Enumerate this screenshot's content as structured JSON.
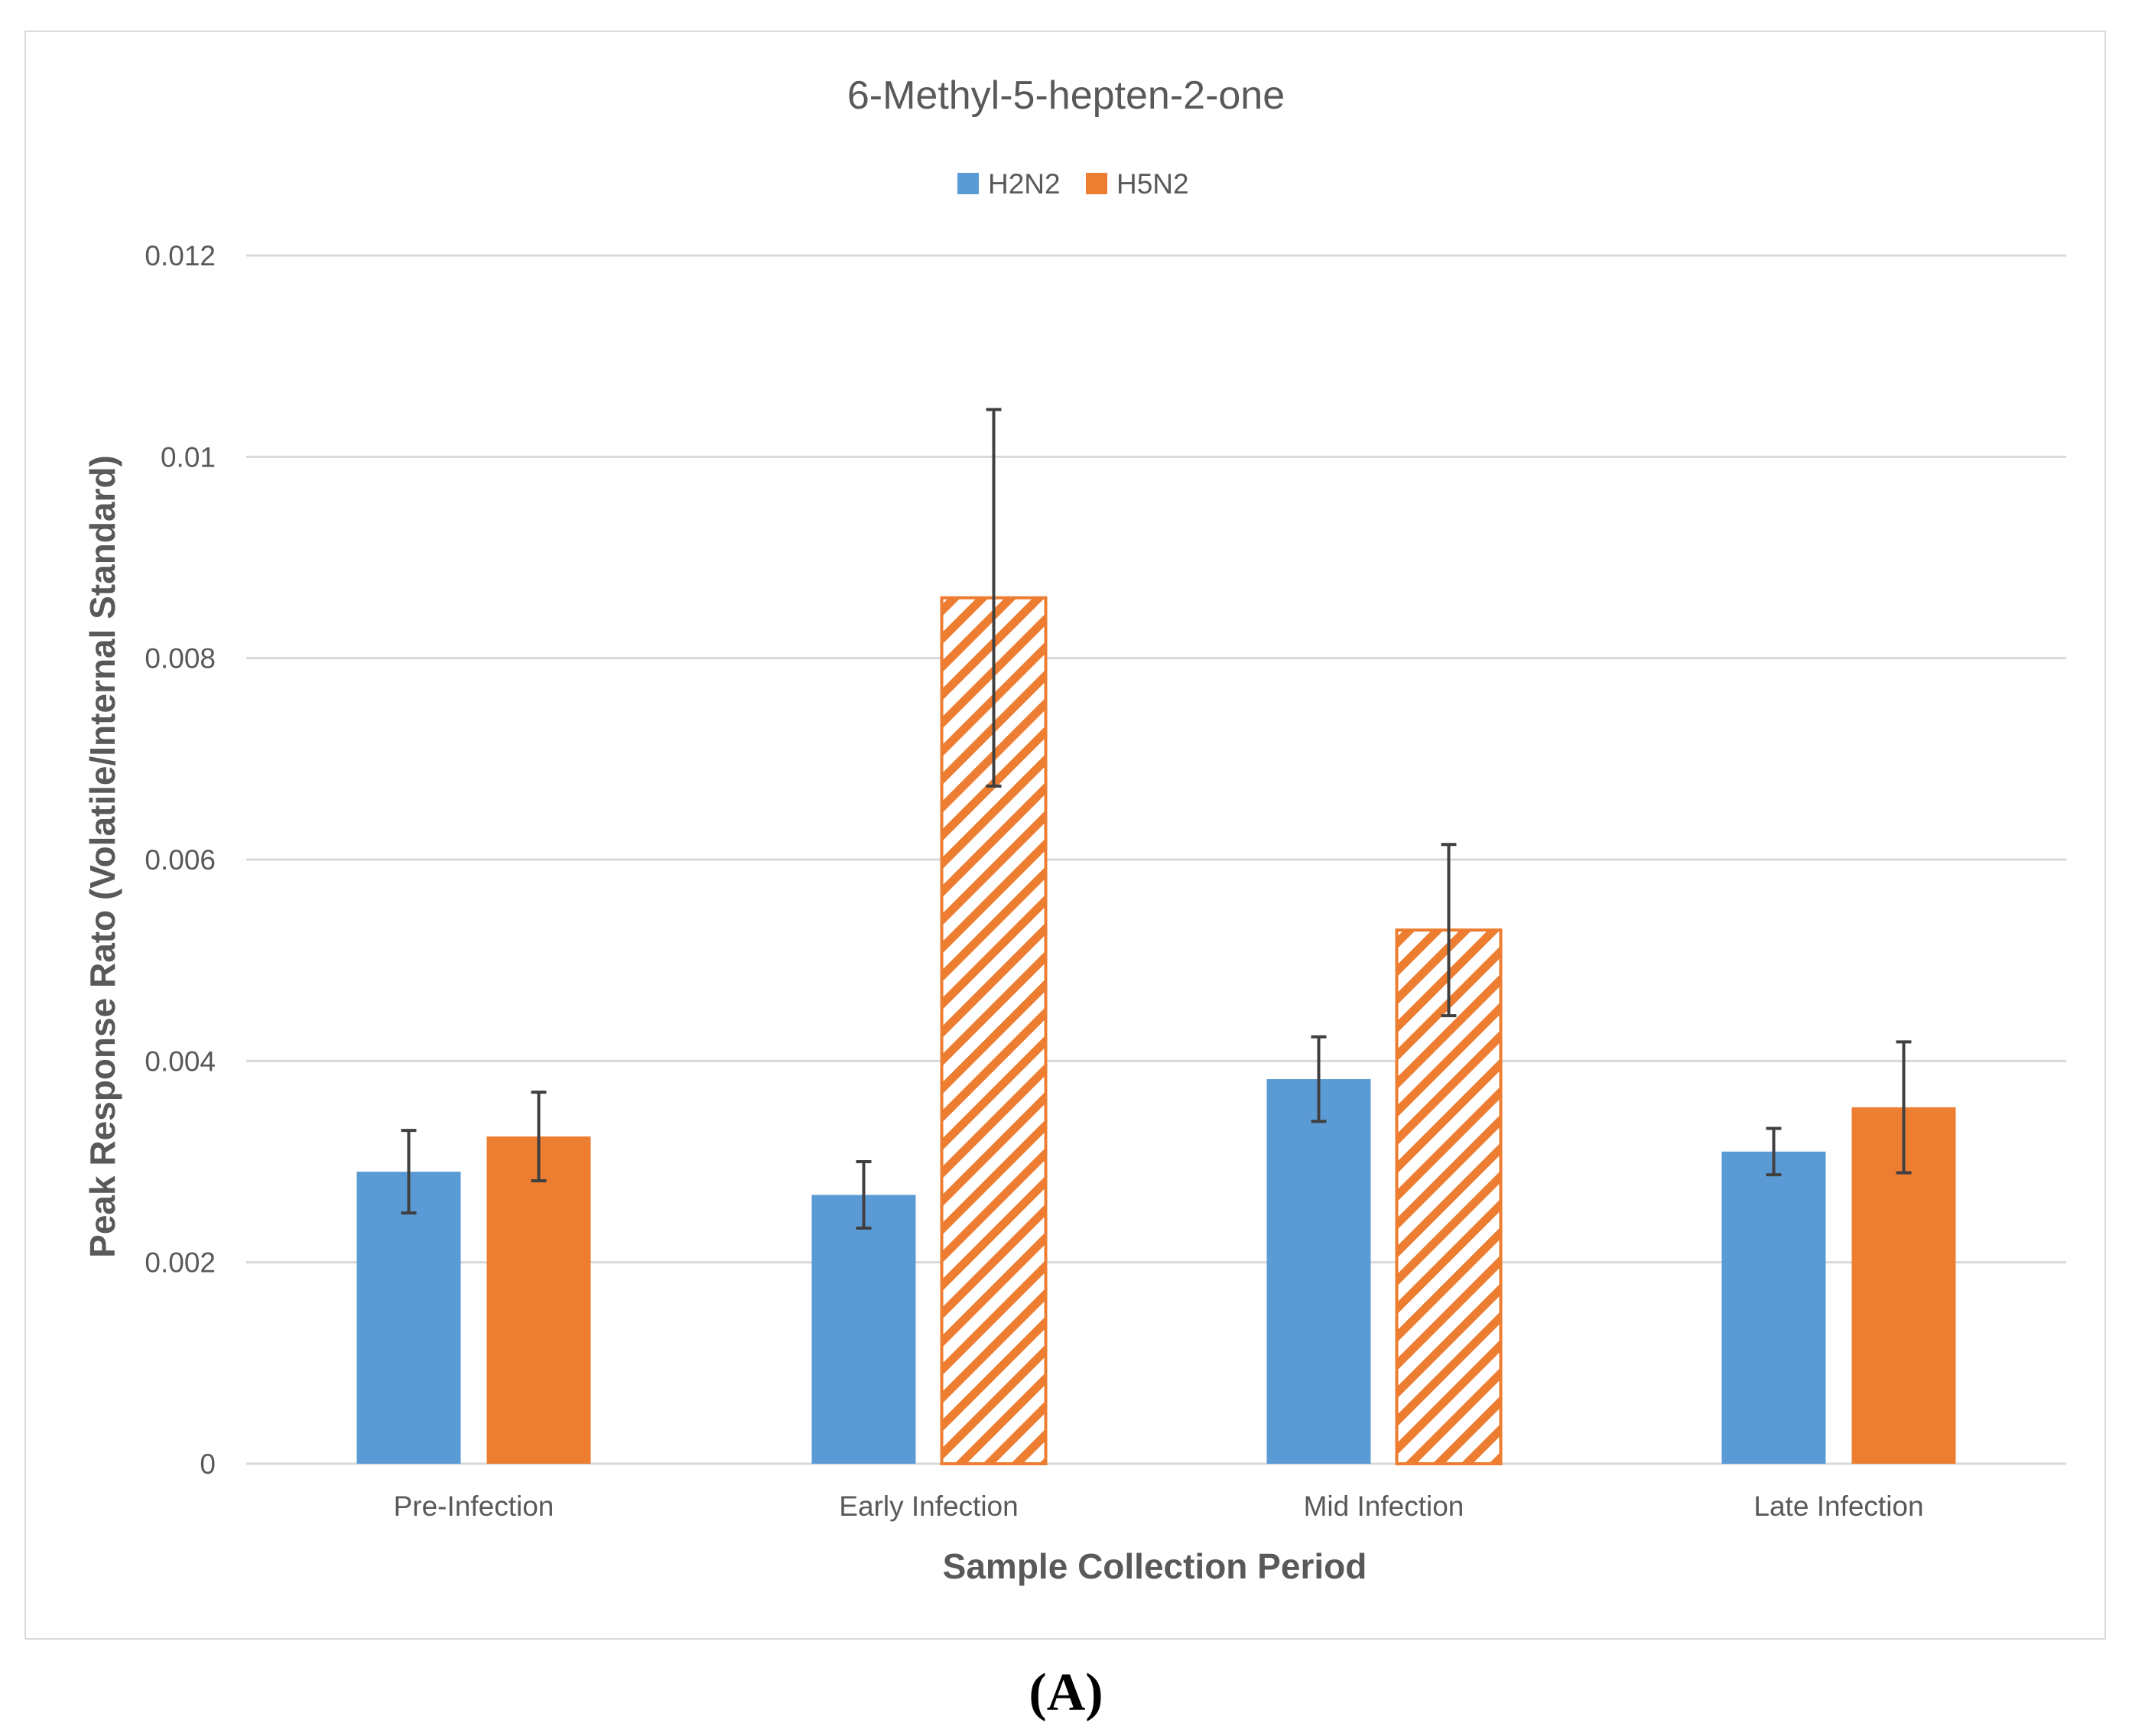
{
  "chart_data": {
    "type": "bar",
    "title": "6-Methyl-5-hepten-2-one",
    "xlabel": "Sample Collection Period",
    "ylabel": "Peak Response Rato (Volatile/Internal Standard)",
    "categories": [
      "Pre-Infection",
      "Early Infection",
      "Mid Infection",
      "Late Infection"
    ],
    "ylim": [
      0,
      0.012
    ],
    "yticks": [
      0,
      0.002,
      0.004,
      0.006,
      0.008,
      0.01,
      0.012
    ],
    "ytick_labels": [
      "0",
      "0.002",
      "0.004",
      "0.006",
      "0.008",
      "0.01",
      "0.012"
    ],
    "grid": true,
    "legend_position": "top-center",
    "series": [
      {
        "name": "H2N2",
        "color": "#5b9bd5",
        "values": [
          0.0029,
          0.00267,
          0.00382,
          0.0031
        ],
        "errors": [
          0.00041,
          0.00033,
          0.00042,
          0.00023
        ],
        "hatched": [
          false,
          false,
          false,
          false
        ]
      },
      {
        "name": "H5N2",
        "color": "#ed7d31",
        "values": [
          0.00325,
          0.0086,
          0.0053,
          0.00354
        ],
        "errors": [
          0.00044,
          0.00187,
          0.00085,
          0.00065
        ],
        "hatched": [
          false,
          true,
          true,
          false
        ]
      }
    ]
  },
  "caption": "(A)"
}
